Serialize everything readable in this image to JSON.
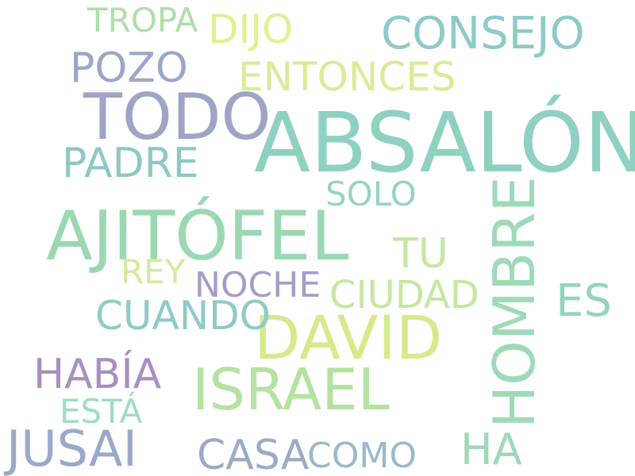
{
  "word_cloud": {
    "words": [
      {
        "text": "ABSALÓN",
        "color": "#8fd1c0"
      },
      {
        "text": "AJITÓFEL",
        "color": "#9ad8b2"
      },
      {
        "text": "TODO",
        "color": "#9ea4c6"
      },
      {
        "text": "DAVID",
        "color": "#d6ea8c"
      },
      {
        "text": "HOMBRE",
        "color": "#9fdab8"
      },
      {
        "text": "ISRAEL",
        "color": "#b4e2a1"
      },
      {
        "text": "JUSAI",
        "color": "#9ba9c9"
      },
      {
        "text": "CONSEJO",
        "color": "#8ecac7"
      },
      {
        "text": "ENTONCES",
        "color": "#d8ec9a"
      },
      {
        "text": "PADRE",
        "color": "#8ec8c5"
      },
      {
        "text": "POZO",
        "color": "#9aa6c8"
      },
      {
        "text": "DIJO",
        "color": "#e1ef8f"
      },
      {
        "text": "CUANDO",
        "color": "#8fcac6"
      },
      {
        "text": "HABÍA",
        "color": "#a88fbe"
      },
      {
        "text": "CIUDAD",
        "color": "#c5e7a2"
      },
      {
        "text": "ES",
        "color": "#95d4bd"
      },
      {
        "text": "CASA",
        "color": "#9aabc7"
      },
      {
        "text": "HA",
        "color": "#9cd9b9"
      },
      {
        "text": "TROPA",
        "color": "#ace0a7"
      },
      {
        "text": "NOCHE",
        "color": "#a79cc8"
      },
      {
        "text": "TU",
        "color": "#c4e7a3"
      },
      {
        "text": "SOLO",
        "color": "#95d3c3"
      },
      {
        "text": "COMO",
        "color": "#9ab9c9"
      },
      {
        "text": "ESTÁ",
        "color": "#a0dcc0"
      },
      {
        "text": "REY",
        "color": "#d4ea9e"
      }
    ]
  }
}
